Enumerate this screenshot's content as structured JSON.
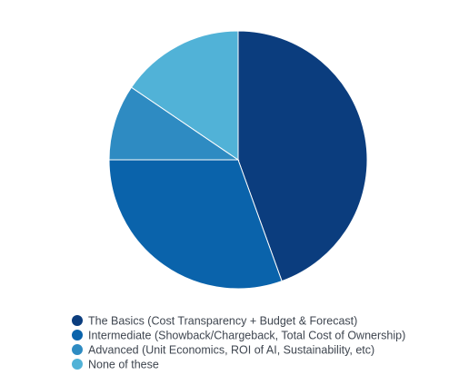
{
  "chart_data": {
    "type": "pie",
    "slices": [
      {
        "label": "The Basics (Cost Transparency + Budget & Forecast)",
        "value": 44.5,
        "color": "#0b3d7e"
      },
      {
        "label": "Intermediate (Showback/Chargeback, Total Cost of Ownership)",
        "value": 30.5,
        "color": "#0a63ab"
      },
      {
        "label": "Advanced (Unit Economics, ROI of AI, Sustainability, etc)",
        "value": 9.5,
        "color": "#2e8bc2"
      },
      {
        "label": "None of these",
        "value": 15.5,
        "color": "#51b2d7"
      }
    ],
    "legend_position": "bottom-left",
    "legend_marker": "circle"
  }
}
